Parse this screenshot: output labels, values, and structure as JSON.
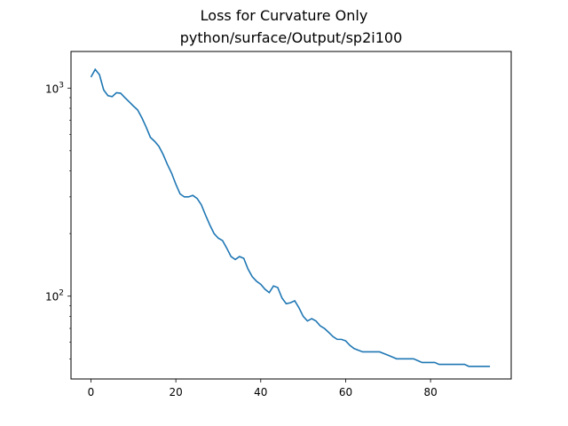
{
  "figure": {
    "suptitle": "Loss for Curvature Only",
    "title": "python/surface/Output/sp2i100"
  },
  "chart_data": {
    "type": "line",
    "title": "python/surface/Output/sp2i100",
    "suptitle": "Loss for Curvature Only",
    "xlabel": "",
    "ylabel": "",
    "yscale": "log",
    "xlim": [
      -4.7,
      99
    ],
    "ylim": [
      40,
      1500
    ],
    "xticks": [
      0,
      20,
      40,
      60,
      80
    ],
    "yticks": [
      {
        "value": 100,
        "base": "10",
        "exp": "2"
      },
      {
        "value": 1000,
        "base": "10",
        "exp": "3"
      }
    ],
    "grid": false,
    "legend": "none",
    "series": [
      {
        "color": "#1f77b4",
        "x": [
          0,
          1,
          2,
          3,
          4,
          5,
          6,
          7,
          8,
          9,
          10,
          11,
          12,
          13,
          14,
          15,
          16,
          17,
          18,
          19,
          20,
          21,
          22,
          23,
          24,
          25,
          26,
          27,
          28,
          29,
          30,
          31,
          32,
          33,
          34,
          35,
          36,
          37,
          38,
          39,
          40,
          41,
          42,
          43,
          44,
          45,
          46,
          47,
          48,
          49,
          50,
          51,
          52,
          53,
          54,
          55,
          56,
          57,
          58,
          59,
          60,
          61,
          62,
          63,
          64,
          65,
          66,
          67,
          68,
          69,
          70,
          71,
          72,
          73,
          74,
          75,
          76,
          77,
          78,
          79,
          80,
          81,
          82,
          83,
          84,
          85,
          86,
          87,
          88,
          89,
          90,
          91,
          92,
          93,
          94
        ],
        "y": [
          1130,
          1230,
          1160,
          980,
          920,
          910,
          950,
          945,
          900,
          860,
          820,
          785,
          720,
          650,
          580,
          555,
          525,
          480,
          430,
          390,
          345,
          310,
          300,
          300,
          305,
          295,
          275,
          245,
          220,
          200,
          190,
          185,
          170,
          155,
          150,
          155,
          152,
          135,
          124,
          118,
          114,
          108,
          104,
          112,
          110,
          98,
          92,
          93,
          95,
          88,
          80,
          76,
          78,
          76,
          72,
          70,
          67,
          64,
          62,
          62,
          61,
          58,
          56,
          55,
          54,
          54,
          54,
          54,
          54,
          53,
          52,
          51,
          50,
          50,
          50,
          50,
          50,
          49,
          48,
          48,
          48,
          48,
          47,
          47,
          47,
          47,
          47,
          47,
          47,
          46,
          46,
          46,
          46,
          46,
          46
        ]
      }
    ]
  }
}
